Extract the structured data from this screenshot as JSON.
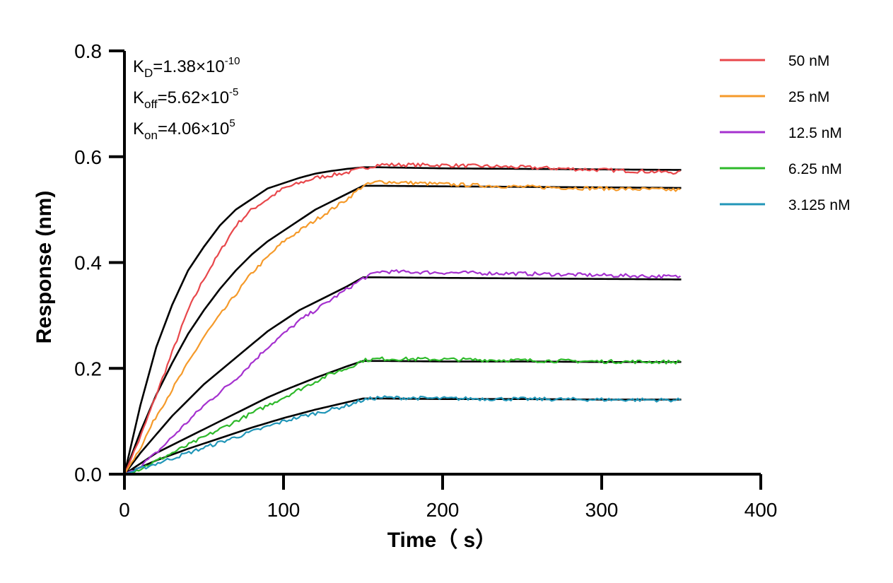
{
  "chart_data": {
    "type": "line",
    "title": "",
    "xlabel": "Time（ s）",
    "ylabel": "Response (nm)",
    "xlim": [
      0,
      400
    ],
    "ylim": [
      0.0,
      0.8
    ],
    "x_ticks": [
      0,
      100,
      200,
      300,
      400
    ],
    "x_tick_labels": [
      "0",
      "100",
      "200",
      "300",
      "400"
    ],
    "y_ticks": [
      0.0,
      0.2,
      0.4,
      0.6,
      0.8
    ],
    "y_tick_labels": [
      "0.0",
      "0.2",
      "0.4",
      "0.6",
      "0.8"
    ],
    "grid": false,
    "legend_position": "top-right",
    "association_end": 150,
    "experiment_end": 350,
    "annotations": [
      {
        "base": "K",
        "sub": "D",
        "eq": "=1.38×10",
        "sup": "-10"
      },
      {
        "base": "K",
        "sub": "off",
        "eq": "=5.62×10",
        "sup": "-5"
      },
      {
        "base": "K",
        "sub": "on",
        "eq": "=4.06×10",
        "sup": "5"
      }
    ],
    "series": [
      {
        "name": "50 nM",
        "color": "#e8474b",
        "x": [
          0,
          10,
          20,
          30,
          40,
          50,
          60,
          70,
          80,
          90,
          100,
          110,
          120,
          130,
          140,
          150,
          160,
          200,
          250,
          300,
          350
        ],
        "y": [
          0.0,
          0.07,
          0.15,
          0.23,
          0.31,
          0.37,
          0.42,
          0.47,
          0.5,
          0.52,
          0.54,
          0.55,
          0.56,
          0.565,
          0.57,
          0.578,
          0.585,
          0.584,
          0.58,
          0.575,
          0.57
        ],
        "fit": [
          0.0,
          0.13,
          0.24,
          0.32,
          0.385,
          0.43,
          0.47,
          0.5,
          0.52,
          0.54,
          0.55,
          0.56,
          0.568,
          0.573,
          0.577,
          0.58,
          0.58,
          0.578,
          0.577,
          0.576,
          0.575
        ]
      },
      {
        "name": "25 nM",
        "color": "#f59a2a",
        "x": [
          0,
          10,
          20,
          30,
          40,
          50,
          60,
          70,
          80,
          90,
          100,
          110,
          120,
          130,
          140,
          150,
          160,
          200,
          250,
          300,
          350
        ],
        "y": [
          0.0,
          0.05,
          0.11,
          0.16,
          0.21,
          0.26,
          0.3,
          0.34,
          0.38,
          0.41,
          0.44,
          0.46,
          0.48,
          0.5,
          0.52,
          0.545,
          0.553,
          0.548,
          0.543,
          0.54,
          0.537
        ],
        "fit": [
          0.0,
          0.08,
          0.15,
          0.21,
          0.265,
          0.31,
          0.35,
          0.385,
          0.415,
          0.44,
          0.46,
          0.48,
          0.5,
          0.515,
          0.53,
          0.545,
          0.545,
          0.544,
          0.543,
          0.542,
          0.541
        ]
      },
      {
        "name": "12.5 nM",
        "color": "#a531cf",
        "x": [
          0,
          10,
          20,
          30,
          40,
          50,
          60,
          70,
          80,
          90,
          100,
          110,
          120,
          130,
          140,
          150,
          160,
          200,
          250,
          300,
          350
        ],
        "y": [
          0.0,
          0.015,
          0.04,
          0.07,
          0.1,
          0.13,
          0.155,
          0.18,
          0.21,
          0.24,
          0.265,
          0.29,
          0.31,
          0.33,
          0.35,
          0.37,
          0.383,
          0.381,
          0.379,
          0.376,
          0.373
        ],
        "fit": [
          0.0,
          0.04,
          0.075,
          0.11,
          0.14,
          0.17,
          0.195,
          0.22,
          0.245,
          0.27,
          0.29,
          0.31,
          0.325,
          0.34,
          0.355,
          0.372,
          0.372,
          0.371,
          0.37,
          0.369,
          0.368
        ]
      },
      {
        "name": "6.25 nM",
        "color": "#2db92a",
        "x": [
          0,
          10,
          20,
          30,
          40,
          50,
          60,
          70,
          80,
          90,
          100,
          110,
          120,
          130,
          140,
          150,
          160,
          200,
          250,
          300,
          350
        ],
        "y": [
          0.0,
          0.01,
          0.025,
          0.04,
          0.055,
          0.07,
          0.085,
          0.1,
          0.115,
          0.13,
          0.145,
          0.16,
          0.175,
          0.19,
          0.2,
          0.215,
          0.218,
          0.217,
          0.215,
          0.213,
          0.212
        ],
        "fit": [
          0.0,
          0.02,
          0.04,
          0.055,
          0.07,
          0.085,
          0.1,
          0.115,
          0.13,
          0.145,
          0.158,
          0.17,
          0.182,
          0.193,
          0.204,
          0.214,
          0.214,
          0.213,
          0.213,
          0.212,
          0.212
        ]
      },
      {
        "name": "3.125 nM",
        "color": "#2196b8",
        "x": [
          0,
          10,
          20,
          30,
          40,
          50,
          60,
          70,
          80,
          90,
          100,
          110,
          120,
          130,
          140,
          150,
          160,
          200,
          250,
          300,
          350
        ],
        "y": [
          0.0,
          0.01,
          0.02,
          0.03,
          0.04,
          0.05,
          0.06,
          0.07,
          0.08,
          0.09,
          0.1,
          0.108,
          0.115,
          0.122,
          0.13,
          0.14,
          0.145,
          0.143,
          0.142,
          0.141,
          0.14
        ],
        "fit": [
          0.0,
          0.013,
          0.026,
          0.037,
          0.048,
          0.058,
          0.068,
          0.078,
          0.088,
          0.097,
          0.106,
          0.114,
          0.122,
          0.129,
          0.136,
          0.143,
          0.143,
          0.142,
          0.142,
          0.141,
          0.141
        ]
      }
    ]
  }
}
